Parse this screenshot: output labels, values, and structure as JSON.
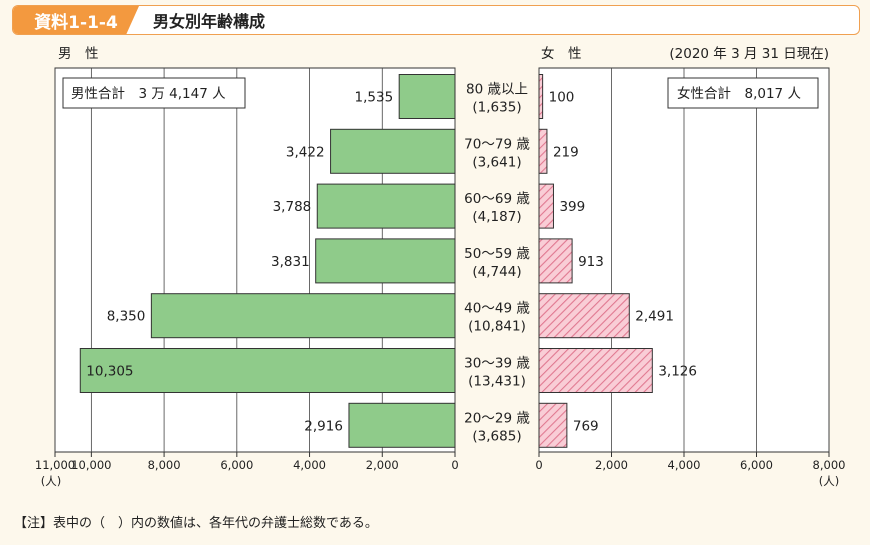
{
  "header": {
    "tag": "資料1-1-4",
    "title": "男女別年齢構成"
  },
  "colors": {
    "male_fill": "#8fcb8a",
    "female_fill": "#f6b8c4",
    "female_stripe": "#e07890",
    "accent": "#f3993f"
  },
  "chart_data": {
    "type": "bar",
    "orientation": "horizontal-population-pyramid",
    "male_header": "男　性",
    "female_header": "女　性",
    "date_note": "(2020 年 3 月 31 日現在)",
    "male_total_label": "男性合計　3 万 4,147 人",
    "female_total_label": "女性合計　8,017 人",
    "categories": [
      "80 歳以上",
      "70〜79 歳",
      "60〜69 歳",
      "50〜59 歳",
      "40〜49 歳",
      "30〜39 歳",
      "20〜29 歳"
    ],
    "category_totals": [
      "(1,635)",
      "(3,641)",
      "(4,187)",
      "(4,744)",
      "(10,841)",
      "(13,431)",
      "(3,685)"
    ],
    "series": [
      {
        "name": "男　性",
        "values": [
          1535,
          3422,
          3788,
          3831,
          8350,
          10305,
          2916
        ],
        "labels": [
          "1,535",
          "3,422",
          "3,788",
          "3,831",
          "8,350",
          "10,305",
          "2,916"
        ]
      },
      {
        "name": "女　性",
        "values": [
          100,
          219,
          399,
          913,
          2491,
          3126,
          769
        ],
        "labels": [
          "100",
          "219",
          "399",
          "913",
          "2,491",
          "3,126",
          "769"
        ]
      }
    ],
    "male_axis": {
      "range": [
        0,
        11000
      ],
      "ticks": [
        11000,
        10000,
        8000,
        6000,
        4000,
        2000,
        0
      ],
      "tick_labels": [
        "11,000",
        "10,000",
        "8,000",
        "6,000",
        "4,000",
        "2,000",
        "0"
      ],
      "unit": "(人)"
    },
    "female_axis": {
      "range": [
        0,
        8000
      ],
      "ticks": [
        0,
        2000,
        4000,
        6000,
        8000
      ],
      "tick_labels": [
        "0",
        "2,000",
        "4,000",
        "6,000",
        "8,000"
      ],
      "unit": "(人)"
    },
    "grid": true
  },
  "footnote": "【注】表中の（　）内の数値は、各年代の弁護士総数である。"
}
